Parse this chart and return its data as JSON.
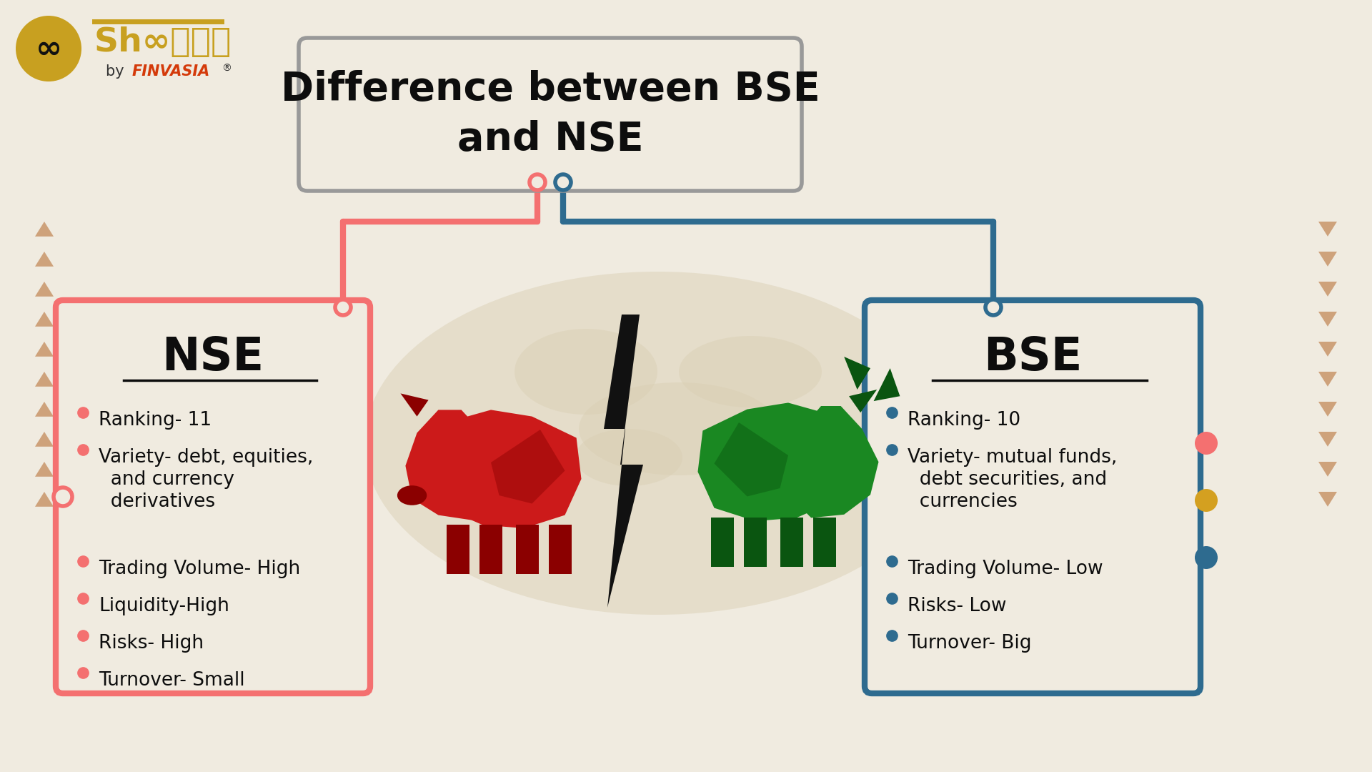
{
  "bg_color": "#F0EBE0",
  "title_text": "Difference between BSE\nand NSE",
  "title_box_edge": "#999999",
  "nse_title": "NSE",
  "nse_box_color": "#F47070",
  "nse_bullet_color": "#F47070",
  "nse_items": [
    "Ranking- 11",
    "Variety- debt, equities,\n  and currency\n  derivatives",
    "Trading Volume- High",
    "Liquidity-High",
    "Risks- High",
    "Turnover- Small"
  ],
  "bse_title": "BSE",
  "bse_box_color": "#2E6B8F",
  "bse_bullet_color": "#2E6B8F",
  "bse_items": [
    "Ranking- 10",
    "Variety- mutual funds,\n  debt securities, and\n  currencies",
    "Trading Volume- Low",
    "Risks- Low",
    "Turnover- Big"
  ],
  "triangle_color": "#C8956A",
  "connector_red": "#F47070",
  "connector_blue": "#2E6B8F",
  "logo_gold": "#C8A020",
  "logo_black": "#1A1A1A",
  "finvasia_red": "#D43A0A",
  "bear_color": "#CC1A1A",
  "bear_dark": "#8B0000",
  "bull_color": "#1A8822",
  "bull_dark": "#0A5510",
  "bolt_color": "#111111",
  "map_color": "#D8CDB0",
  "pin_red": "#F47070",
  "pin_gold": "#D4A020",
  "pin_blue": "#2E6B8F"
}
